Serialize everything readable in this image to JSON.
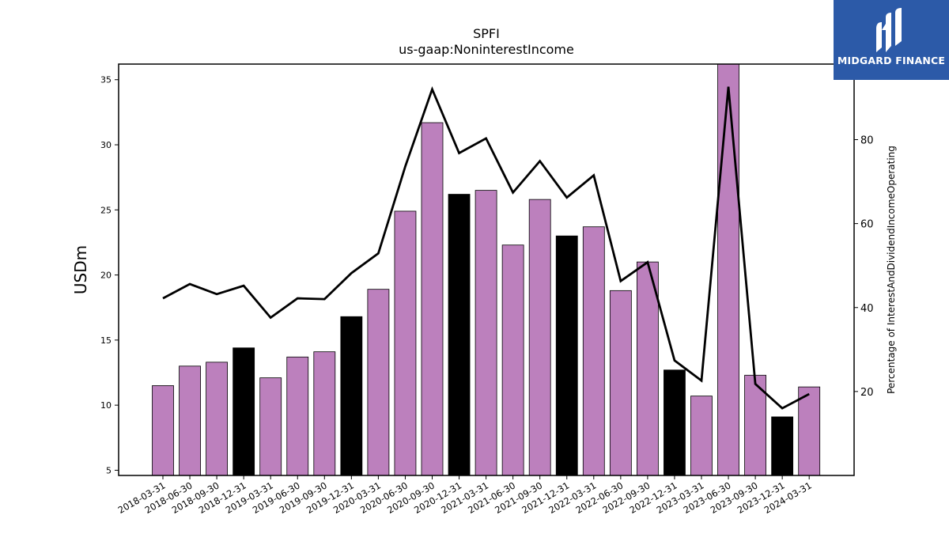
{
  "chart_data": {
    "type": "bar",
    "title": "SPFI",
    "subtitle": "us-gaap:NoninterestIncome",
    "ylabel": "USDm",
    "y2label": "Percentage of InterestAndDividendIncomeOperating",
    "ylim": [
      4.6,
      36.2
    ],
    "y2lim": [
      0,
      98
    ],
    "yticks": [
      5,
      10,
      15,
      20,
      25,
      30,
      35
    ],
    "y2ticks": [
      20,
      40,
      60,
      80
    ],
    "categories": [
      "2018-03-31",
      "2018-06-30",
      "2018-09-30",
      "2018-12-31",
      "2019-03-31",
      "2019-06-30",
      "2019-09-30",
      "2019-12-31",
      "2020-03-31",
      "2020-06-30",
      "2020-09-30",
      "2020-12-31",
      "2021-03-31",
      "2021-06-30",
      "2021-09-30",
      "2021-12-31",
      "2022-03-31",
      "2022-06-30",
      "2022-09-30",
      "2022-12-31",
      "2023-03-31",
      "2023-06-30",
      "2023-09-30",
      "2023-12-31",
      "2024-03-31"
    ],
    "series": [
      {
        "type": "bar",
        "values": [
          11.5,
          13.0,
          13.3,
          14.4,
          12.1,
          13.7,
          14.1,
          16.8,
          18.9,
          24.9,
          31.7,
          26.2,
          26.5,
          22.3,
          25.8,
          23.0,
          23.7,
          18.8,
          21.0,
          12.7,
          10.7,
          36.2,
          12.3,
          9.1,
          11.4
        ],
        "highlight": [
          false,
          false,
          false,
          true,
          false,
          false,
          false,
          true,
          false,
          false,
          false,
          true,
          false,
          false,
          false,
          true,
          false,
          false,
          false,
          true,
          false,
          false,
          false,
          true,
          false
        ]
      },
      {
        "type": "line",
        "axis": "right",
        "values": [
          42.2,
          45.6,
          43.2,
          45.2,
          37.6,
          42.2,
          42.0,
          48.2,
          52.9,
          73.6,
          92.0,
          76.8,
          80.3,
          67.4,
          74.9,
          66.2,
          71.5,
          46.3,
          50.8,
          27.4,
          22.6,
          92.6,
          21.8,
          16.0,
          19.4
        ]
      }
    ],
    "colors": {
      "bar": "#bc80bd",
      "highlight_bar": "#000000",
      "line": "#000000",
      "logo_bg": "#2c5aa8"
    },
    "grid": false
  },
  "logo": {
    "text": "MIDGARD FINANCE",
    "icon": "midgard-logo-icon"
  }
}
